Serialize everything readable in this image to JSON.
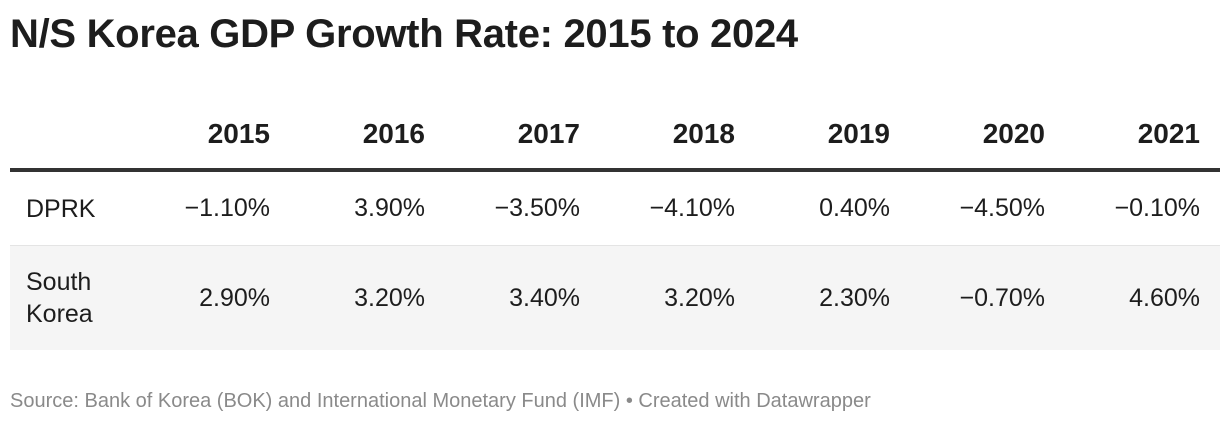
{
  "title": "N/S Korea GDP Growth Rate: 2015 to 2024",
  "chart_data": {
    "type": "table",
    "title": "N/S Korea GDP Growth Rate: 2015 to 2024",
    "columns": [
      "2015",
      "2016",
      "2017",
      "2018",
      "2019",
      "2020",
      "2021"
    ],
    "rows": [
      {
        "label": "DPRK",
        "values": [
          -1.1,
          3.9,
          -3.5,
          -4.1,
          0.4,
          -4.5,
          -0.1
        ],
        "display": [
          "−1.10%",
          "3.90%",
          "−3.50%",
          "−4.10%",
          "0.40%",
          "−4.50%",
          "−0.10%"
        ]
      },
      {
        "label": "South Korea",
        "values": [
          2.9,
          3.2,
          3.4,
          3.2,
          2.3,
          -0.7,
          4.6
        ],
        "display": [
          "2.90%",
          "3.20%",
          "3.40%",
          "3.20%",
          "2.30%",
          "−0.70%",
          "4.60%"
        ]
      }
    ]
  },
  "footer": {
    "source": "Source: Bank of Korea (BOK) and International Monetary Fund (IMF) • Created with Datawrapper"
  },
  "colors": {
    "text": "#1d1d1d",
    "header_rule": "#333333",
    "row_divider": "#e4e4e4",
    "alt_row_bg": "#f5f5f5",
    "footer_text": "#8a8a8a"
  }
}
